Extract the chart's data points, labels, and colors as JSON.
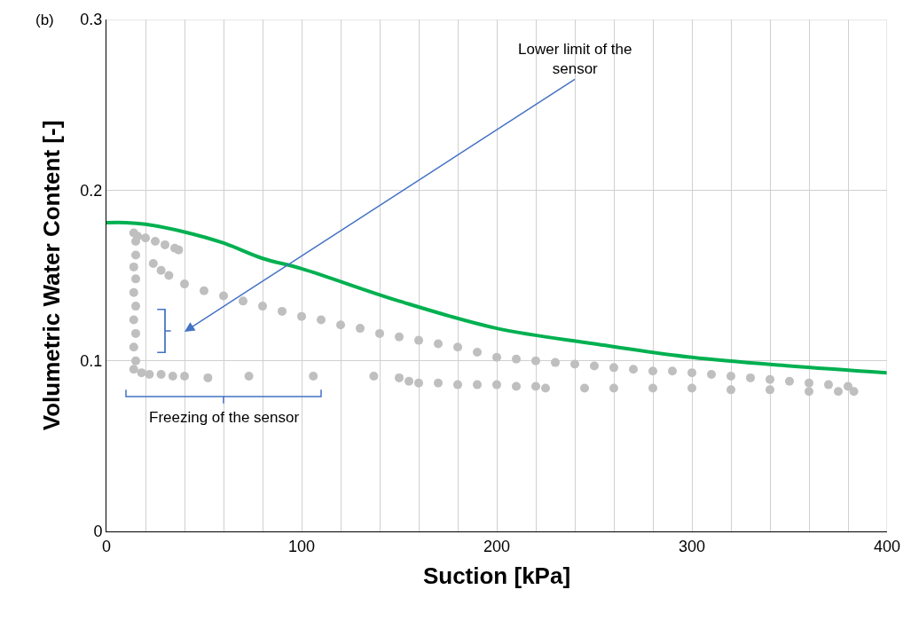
{
  "chart_data": {
    "type": "scatter",
    "xlabel": "Suction [kPa]",
    "ylabel": "Volumetric Water Content [-]",
    "xlim": [
      0,
      400
    ],
    "ylim": [
      0,
      0.3
    ],
    "xticks": [
      0,
      {
        "value": 20,
        "label": null
      },
      {
        "value": 40,
        "label": null
      },
      {
        "value": 60,
        "label": null
      },
      {
        "value": 80,
        "label": null
      },
      100,
      {
        "value": 120,
        "label": null
      },
      {
        "value": 140,
        "label": null
      },
      {
        "value": 160,
        "label": null
      },
      {
        "value": 180,
        "label": null
      },
      200,
      {
        "value": 220,
        "label": null
      },
      {
        "value": 240,
        "label": null
      },
      {
        "value": 260,
        "label": null
      },
      {
        "value": 280,
        "label": null
      },
      300,
      {
        "value": 320,
        "label": null
      },
      {
        "value": 340,
        "label": null
      },
      {
        "value": 360,
        "label": null
      },
      {
        "value": 380,
        "label": null
      },
      400
    ],
    "yticks": [
      0,
      0.1,
      0.2,
      0.3
    ],
    "grid": true,
    "series": [
      {
        "marker": "circle",
        "color": "#bfbfbf",
        "x": [
          14,
          15,
          15,
          14,
          15,
          14,
          15,
          14,
          15,
          14,
          15,
          14,
          16,
          20,
          25,
          30,
          35,
          37,
          24,
          28,
          32,
          40,
          50,
          60,
          70,
          80,
          90,
          100,
          110,
          120,
          130,
          140,
          150,
          160,
          170,
          180,
          190,
          200,
          210,
          220,
          230,
          240,
          250,
          260,
          270,
          280,
          290,
          300,
          310,
          320,
          330,
          340,
          350,
          360,
          370,
          380,
          18,
          22,
          28,
          34,
          40,
          52,
          73,
          106,
          137,
          150,
          155,
          160,
          170,
          180,
          190,
          200,
          210,
          220,
          225,
          245,
          260,
          280,
          300,
          320,
          340,
          360,
          375,
          383
        ],
        "values": [
          0.175,
          0.17,
          0.162,
          0.155,
          0.148,
          0.14,
          0.132,
          0.124,
          0.116,
          0.108,
          0.1,
          0.095,
          0.173,
          0.172,
          0.17,
          0.168,
          0.166,
          0.165,
          0.157,
          0.153,
          0.15,
          0.145,
          0.141,
          0.138,
          0.135,
          0.132,
          0.129,
          0.126,
          0.124,
          0.121,
          0.119,
          0.116,
          0.114,
          0.112,
          0.11,
          0.108,
          0.105,
          0.102,
          0.101,
          0.1,
          0.099,
          0.098,
          0.097,
          0.096,
          0.095,
          0.094,
          0.094,
          0.093,
          0.092,
          0.091,
          0.09,
          0.089,
          0.088,
          0.087,
          0.086,
          0.085,
          0.093,
          0.092,
          0.092,
          0.091,
          0.091,
          0.09,
          0.091,
          0.091,
          0.091,
          0.09,
          0.088,
          0.087,
          0.087,
          0.086,
          0.086,
          0.086,
          0.085,
          0.085,
          0.084,
          0.084,
          0.084,
          0.084,
          0.084,
          0.083,
          0.083,
          0.082,
          0.082,
          0.082
        ]
      },
      {
        "type": "line",
        "marker": "none",
        "color": "#00b050",
        "x": [
          0,
          10,
          20,
          40,
          60,
          80,
          100,
          150,
          200,
          250,
          300,
          350,
          400
        ],
        "values": [
          0.181,
          0.181,
          0.18,
          0.1755,
          0.169,
          0.16,
          0.154,
          0.135,
          0.119,
          0.11,
          0.102,
          0.097,
          0.093
        ]
      }
    ],
    "annotations": [
      "(b)",
      "Lower limit of the\nsensor",
      "Freezing of the sensor"
    ]
  }
}
